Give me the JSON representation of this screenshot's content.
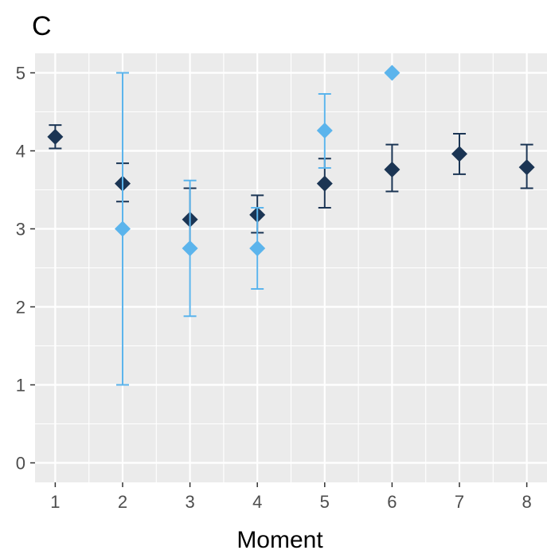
{
  "chart_data": {
    "type": "scatter",
    "panel_label": "C",
    "title": "",
    "xlabel": "Moment",
    "ylabel": "",
    "xlim": [
      0.7,
      8.3
    ],
    "ylim": [
      -0.25,
      5.25
    ],
    "x_ticks": [
      "1",
      "2",
      "3",
      "4",
      "5",
      "6",
      "7",
      "8"
    ],
    "y_ticks": [
      "0",
      "1",
      "2",
      "3",
      "4",
      "5"
    ],
    "grid": true,
    "legend": "none",
    "panel_background": "#ebebeb",
    "series": [
      {
        "color": "#1b3554",
        "points": [
          {
            "x": 1,
            "y": 4.18,
            "ymin": 4.03,
            "ymax": 4.33
          },
          {
            "x": 2,
            "y": 3.58,
            "ymin": 3.35,
            "ymax": 3.84
          },
          {
            "x": 3,
            "y": 3.12,
            "ymin": 2.74,
            "ymax": 3.52
          },
          {
            "x": 4,
            "y": 3.18,
            "ymin": 2.95,
            "ymax": 3.43
          },
          {
            "x": 5,
            "y": 3.58,
            "ymin": 3.27,
            "ymax": 3.9
          },
          {
            "x": 6,
            "y": 3.76,
            "ymin": 3.48,
            "ymax": 4.08
          },
          {
            "x": 7,
            "y": 3.96,
            "ymin": 3.7,
            "ymax": 4.22
          },
          {
            "x": 8,
            "y": 3.79,
            "ymin": 3.52,
            "ymax": 4.08
          }
        ]
      },
      {
        "color": "#5bb4ec",
        "points": [
          {
            "x": 2,
            "y": 3.0,
            "ymin": 1.0,
            "ymax": 5.0
          },
          {
            "x": 3,
            "y": 2.75,
            "ymin": 1.88,
            "ymax": 3.62
          },
          {
            "x": 4,
            "y": 2.75,
            "ymin": 2.23,
            "ymax": 3.27
          },
          {
            "x": 5,
            "y": 4.26,
            "ymin": 3.78,
            "ymax": 4.73
          },
          {
            "x": 6,
            "y": 5.0
          }
        ]
      }
    ]
  }
}
